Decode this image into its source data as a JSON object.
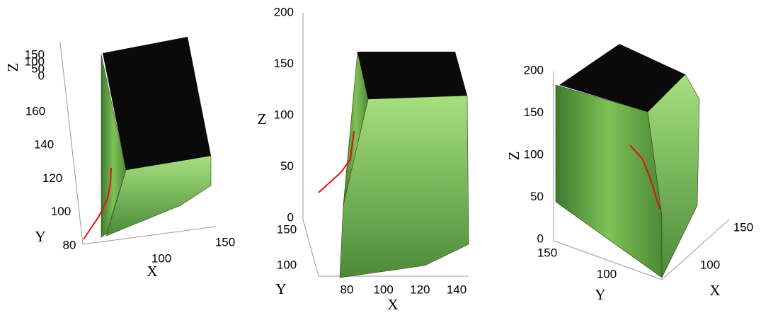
{
  "chart_data": [
    {
      "type": "surface3d",
      "x_label": "X",
      "y_label": "Y",
      "z_label": "Z",
      "xticks": [
        100,
        150
      ],
      "yticks": [
        80,
        100,
        120,
        140,
        160
      ],
      "zticks": [
        0,
        50,
        100,
        150
      ]
    },
    {
      "type": "surface3d",
      "x_label": "X",
      "y_label": "Y",
      "z_label": "Z",
      "xticks": [
        80,
        100,
        120,
        140
      ],
      "yticks": [
        100,
        150
      ],
      "zticks": [
        0,
        50,
        100,
        150,
        200
      ]
    },
    {
      "type": "surface3d",
      "x_label": "X",
      "y_label": "Y",
      "z_label": "Z",
      "xticks": [
        100,
        150
      ],
      "yticks": [
        100,
        150
      ],
      "zticks": [
        0,
        50,
        100,
        150,
        200
      ]
    }
  ]
}
